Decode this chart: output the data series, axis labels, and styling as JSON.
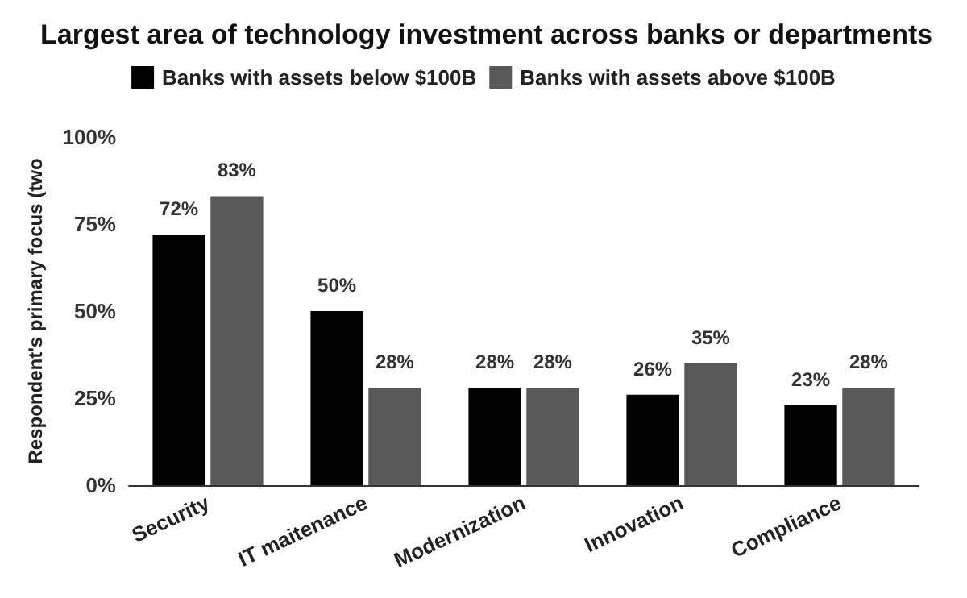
{
  "chart_data": {
    "type": "bar",
    "title": "Largest area of technology investment across banks or departments",
    "ylabel": "Respondent's primary focus (two",
    "categories": [
      "Security",
      "IT maitenance",
      "Modernization",
      "Innovation",
      "Compliance"
    ],
    "series": [
      {
        "name": "Banks with assets below $100B",
        "color": "#000000",
        "values": [
          72,
          50,
          28,
          26,
          23
        ],
        "value_labels": [
          "72%",
          "50%",
          "28%",
          "26%",
          "23%"
        ]
      },
      {
        "name": "Banks with assets above $100B",
        "color": "#595959",
        "values": [
          83,
          28,
          28,
          35,
          28
        ],
        "value_labels": [
          "83%",
          "28%",
          "28%",
          "35%",
          "28%"
        ]
      }
    ],
    "ylim": [
      0,
      100
    ],
    "yticks": [
      {
        "value": 0,
        "label": "0%"
      },
      {
        "value": 25,
        "label": "25%"
      },
      {
        "value": 50,
        "label": "50%"
      },
      {
        "value": 75,
        "label": "75%"
      },
      {
        "value": 100,
        "label": "100%"
      }
    ],
    "grid": false,
    "legend": "top"
  }
}
